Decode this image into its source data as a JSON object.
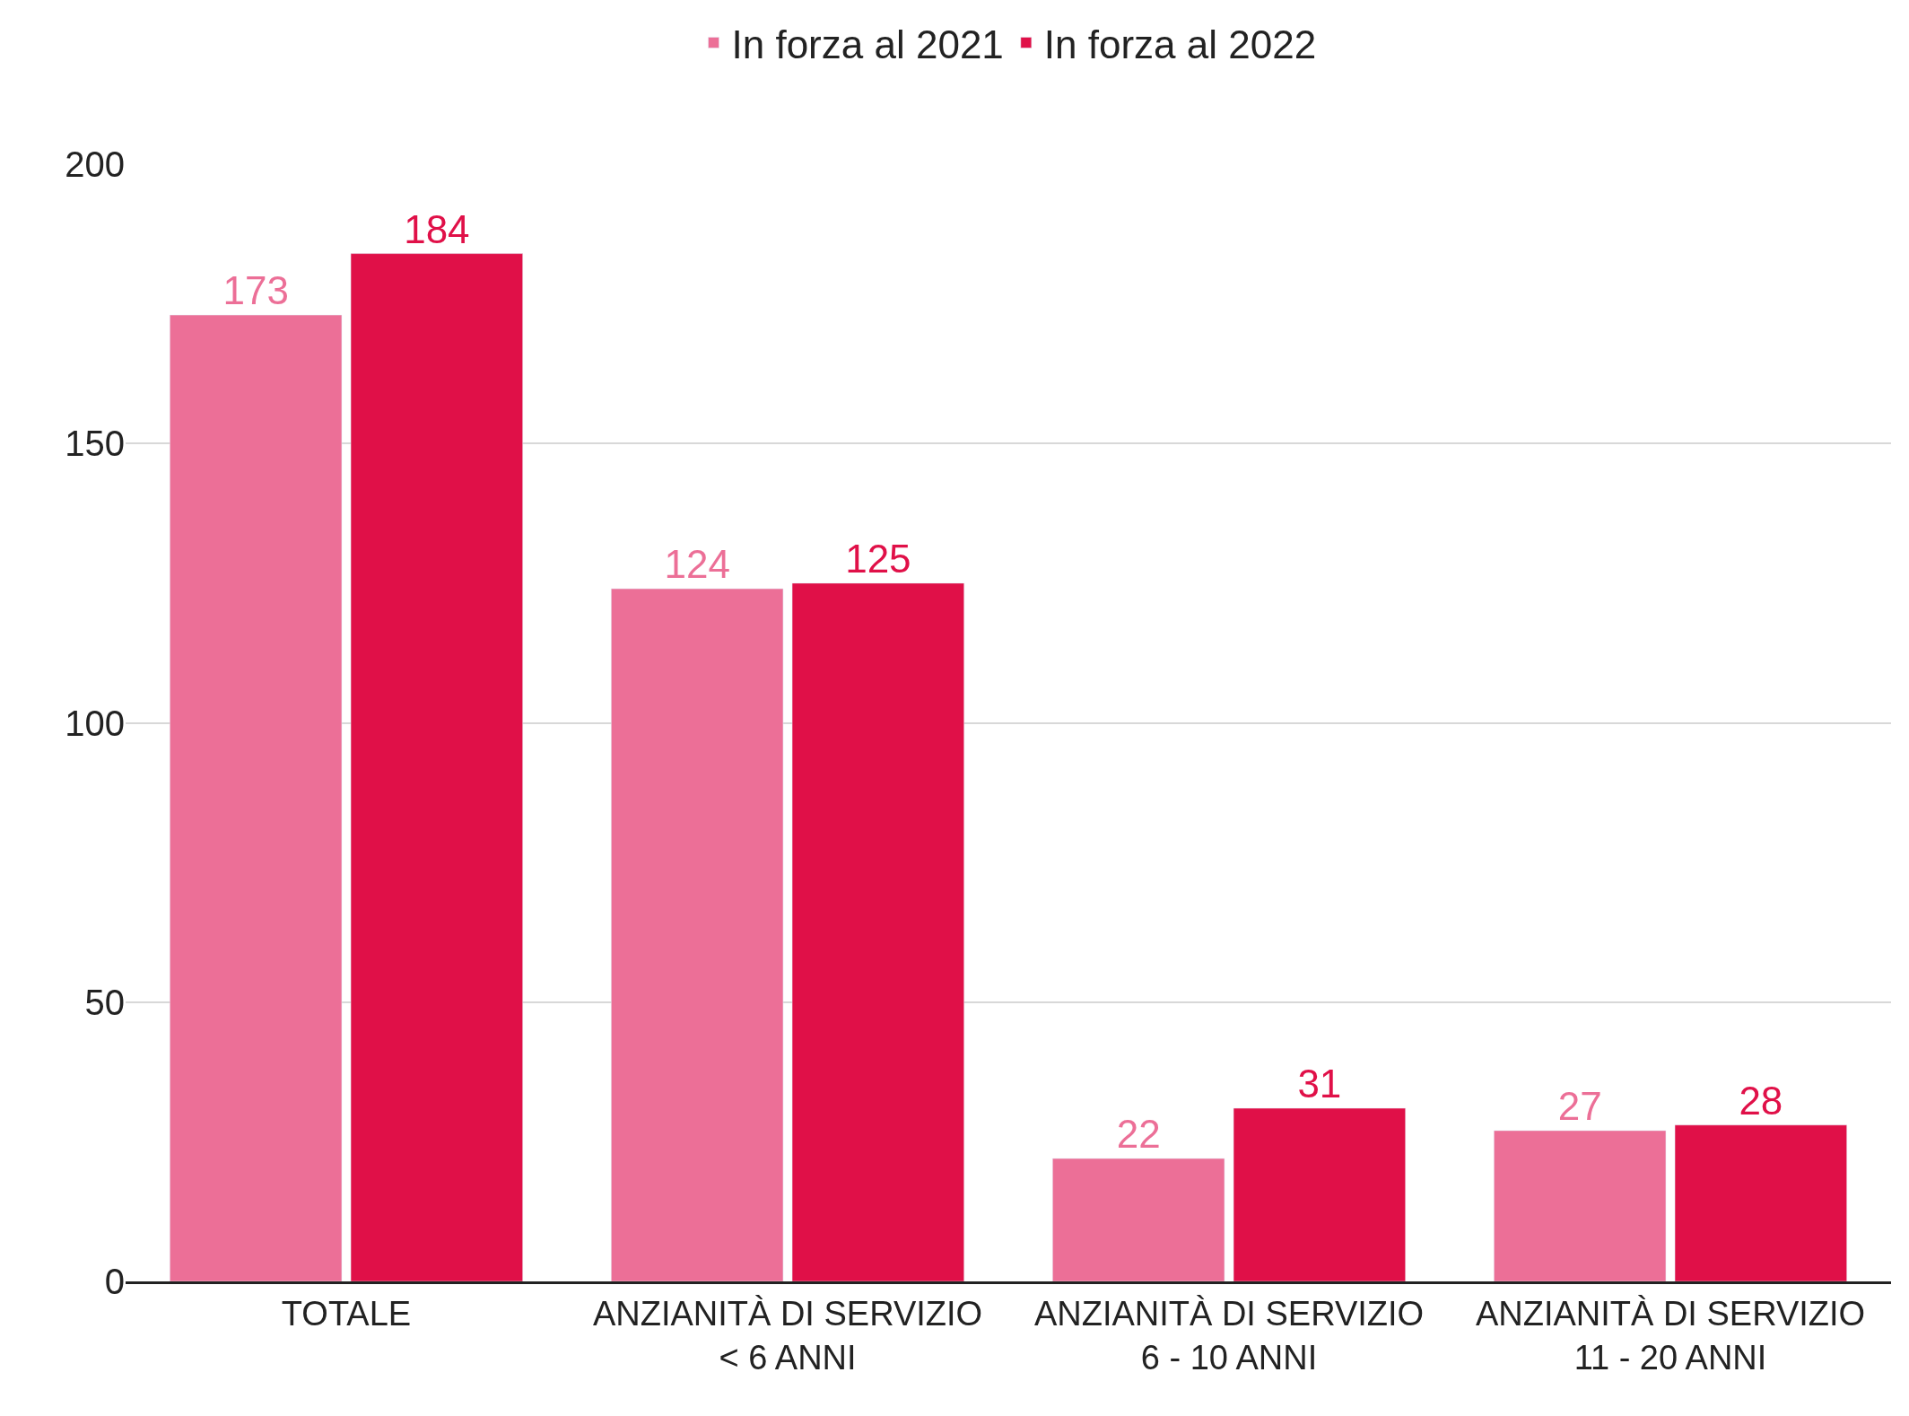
{
  "chart_data": {
    "type": "bar",
    "categories": [
      "TOTALE",
      "ANZIANITÀ DI SERVIZIO\n< 6 ANNI",
      "ANZIANITÀ DI SERVIZIO\n6 - 10 ANNI",
      "ANZIANITÀ DI SERVIZIO\n11 - 20 ANNI"
    ],
    "series": [
      {
        "name": "In forza al 2021",
        "color": "#ec6f97",
        "values": [
          173,
          124,
          22,
          27
        ]
      },
      {
        "name": "In forza al 2022",
        "color": "#e01048",
        "values": [
          184,
          125,
          31,
          28
        ]
      }
    ],
    "ylim": [
      0,
      200
    ],
    "yticks": [
      0,
      50,
      100,
      150,
      200
    ],
    "grid": "y",
    "legend": "top",
    "data_labels": true
  }
}
